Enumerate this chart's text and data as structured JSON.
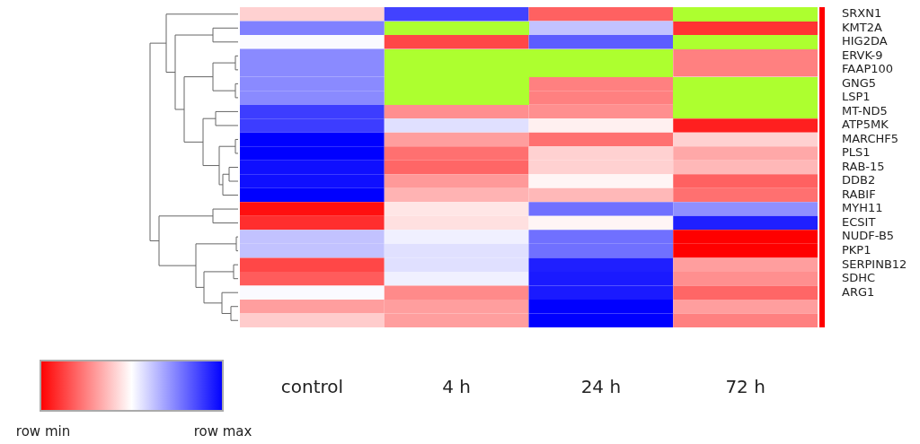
{
  "chart_data": {
    "type": "heatmap",
    "categories": [
      "control",
      "4 h",
      "24 h",
      "72 h"
    ],
    "y_categories": [
      "SRXN1",
      "KMT2A",
      "HIG2DA",
      "ERVK-9",
      "FAAP100",
      "GNG5",
      "LSP1",
      "MT-ND5",
      "ATP5MK",
      "MARCHF5",
      "PLS1",
      "RAB-15",
      "DDB2",
      "RABIF",
      "MYH11",
      "ECSIT",
      "NUDF-B5",
      "PKP1",
      "SERPINB12",
      "SDHC",
      "ARG1",
      null,
      null
    ],
    "cells": [
      [
        0.41,
        0.87,
        0.19,
        null
      ],
      [
        0.75,
        null,
        0.62,
        0.1
      ],
      [
        0.51,
        0.14,
        0.82,
        null
      ],
      [
        0.73,
        null,
        null,
        0.25
      ],
      [
        0.73,
        null,
        null,
        0.25
      ],
      [
        0.73,
        null,
        0.25,
        null
      ],
      [
        0.73,
        null,
        0.25,
        null
      ],
      [
        0.88,
        0.28,
        0.28,
        null
      ],
      [
        0.88,
        0.56,
        0.47,
        0.06
      ],
      [
        1,
        0.31,
        0.22,
        0.41
      ],
      [
        1,
        0.22,
        0.41,
        0.33
      ],
      [
        0.97,
        0.2,
        0.41,
        0.36
      ],
      [
        0.97,
        0.3,
        0.48,
        0.19
      ],
      [
        1,
        0.35,
        0.36,
        0.22
      ],
      [
        0.03,
        0.45,
        0.78,
        0.72
      ],
      [
        0.09,
        0.44,
        0.48,
        0.94
      ],
      [
        0.62,
        0.53,
        0.78,
        0
      ],
      [
        0.62,
        0.56,
        0.78,
        0
      ],
      [
        0.14,
        0.56,
        0.94,
        0.31
      ],
      [
        0.18,
        0.53,
        0.95,
        0.28
      ],
      [
        0.51,
        0.27,
        0.95,
        0.2
      ],
      [
        0.31,
        0.31,
        1,
        0.31
      ],
      [
        0.4,
        0.31,
        1,
        0.25
      ]
    ],
    "clim": [
      0,
      1
    ],
    "cticks": [
      {
        "value": 0,
        "label": "row min"
      },
      {
        "value": 1,
        "label": "row max"
      }
    ]
  }
}
